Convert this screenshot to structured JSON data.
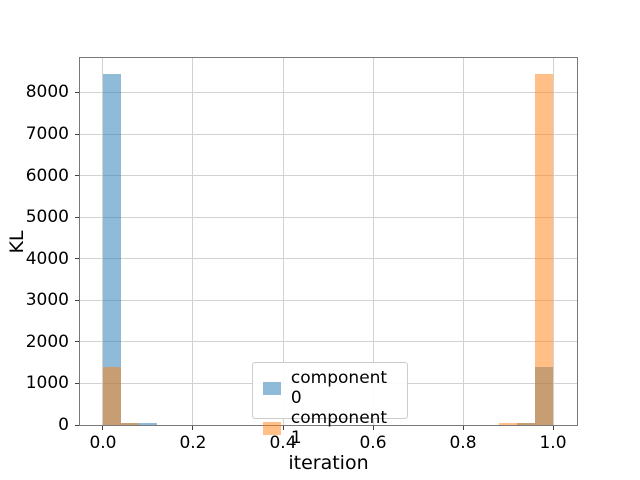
{
  "chart_data": {
    "type": "bar",
    "title": "",
    "xlabel": "iteration",
    "ylabel": "KL",
    "x_ticks": [
      0.0,
      0.2,
      0.4,
      0.6,
      0.8,
      1.0
    ],
    "x_tick_labels": [
      "0.0",
      "0.2",
      "0.4",
      "0.6",
      "0.8",
      "1.0"
    ],
    "y_ticks": [
      0,
      1000,
      2000,
      3000,
      4000,
      5000,
      6000,
      7000,
      8000
    ],
    "y_tick_labels": [
      "0",
      "1000",
      "2000",
      "3000",
      "4000",
      "5000",
      "6000",
      "7000",
      "8000"
    ],
    "xlim": [
      -0.0511,
      1.0533
    ],
    "ylim": [
      0,
      8830
    ],
    "bin_width": 0.04,
    "grid": true,
    "legend_position": "lower-center",
    "series": [
      {
        "name": "component 0",
        "color": "#1f77b4",
        "alpha": 0.5,
        "bars": [
          {
            "bin_start": 0.0,
            "value": 8440
          },
          {
            "bin_start": 0.04,
            "value": 60
          },
          {
            "bin_start": 0.08,
            "value": 50
          },
          {
            "bin_start": 0.92,
            "value": 60
          },
          {
            "bin_start": 0.96,
            "value": 1400
          }
        ]
      },
      {
        "name": "component 1",
        "color": "#ff7f0e",
        "alpha": 0.5,
        "bars": [
          {
            "bin_start": 0.0,
            "value": 1400
          },
          {
            "bin_start": 0.04,
            "value": 60
          },
          {
            "bin_start": 0.88,
            "value": 40
          },
          {
            "bin_start": 0.92,
            "value": 60
          },
          {
            "bin_start": 0.96,
            "value": 8440
          }
        ]
      }
    ],
    "colors": {
      "grid": "#d2d2d2",
      "spine": "#787878",
      "tick": "#404040",
      "text": "#000000",
      "legend_border": "#cccccc",
      "legend_bg": "rgba(255,255,255,0.9)"
    }
  }
}
